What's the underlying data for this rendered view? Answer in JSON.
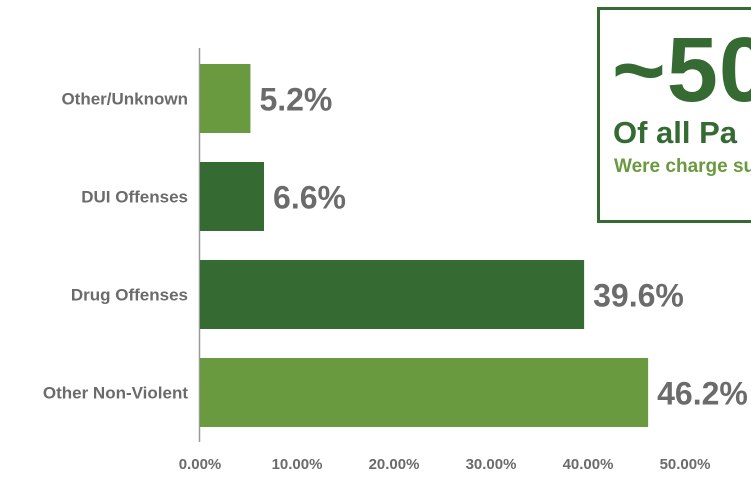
{
  "chart_data": {
    "type": "bar",
    "orientation": "horizontal",
    "categories": [
      "Other/Unknown",
      "DUI Offenses",
      "Drug Offenses",
      "Other Non-Violent"
    ],
    "values": [
      5.2,
      6.6,
      39.6,
      46.2
    ],
    "value_labels": [
      "5.2%",
      "6.6%",
      "39.6%",
      "46.2%"
    ],
    "bar_colors": [
      "#6a9a40",
      "#356a33",
      "#356a33",
      "#6a9a40"
    ],
    "xlim": [
      0,
      50
    ],
    "xticks": [
      0,
      10,
      20,
      30,
      40,
      50
    ],
    "xtick_labels": [
      "0.00%",
      "10.00%",
      "20.00%",
      "30.00%",
      "40.00%",
      "50.00%"
    ],
    "grid": false,
    "title": "",
    "xlabel": "",
    "ylabel": ""
  },
  "callout": {
    "headline": "~50",
    "subheadline": "Of all Pa",
    "description": "Were charge substance a",
    "border_color": "#356a33",
    "headline_color": "#356a33",
    "description_color": "#6a9a40"
  }
}
